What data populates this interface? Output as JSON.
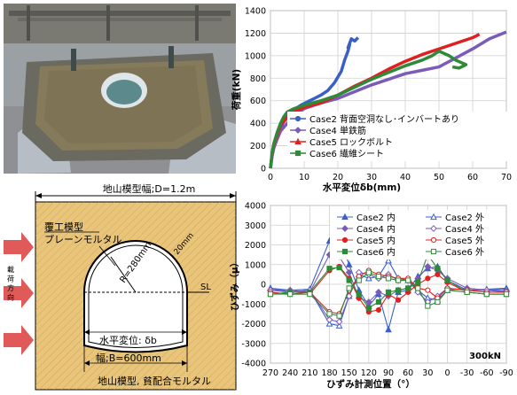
{
  "photo": {
    "description_icon": "test-apparatus-photo",
    "colors": {
      "frame": "#6f6a5e",
      "mortar": "#7d7156",
      "rubble": "#8c8a86",
      "sky": "#aeb5bc"
    }
  },
  "diagram": {
    "width_label": "地山模型幅;D=1.2m",
    "lining_label_1": "覆工模型",
    "lining_label_2": "プレーンモルタル",
    "radius_label": "R=280mm",
    "thickness_label": "20mm",
    "sl_label": "SL",
    "disp_label": "水平変位: δb",
    "width_b_label": "幅;B=600mm",
    "ground_label": "地山模型, 貧配合モルタル",
    "load_direction_label": "載 荷 方 向",
    "colors": {
      "ground": "#e8c57a",
      "arrow": "#e05a5a",
      "lining": "#ffffff"
    }
  },
  "chart_data": [
    {
      "type": "line",
      "xlabel": "水平変位δb(mm)",
      "ylabel": "荷重(kN)",
      "xlim": [
        0,
        70
      ],
      "ylim": [
        0,
        1400
      ],
      "xticks": [
        0,
        10,
        20,
        30,
        40,
        50,
        60,
        70
      ],
      "yticks": [
        0,
        200,
        400,
        600,
        800,
        1000,
        1200,
        1400
      ],
      "grid": true,
      "legend_position": "bottom-right",
      "series": [
        {
          "name": "Case2 背面空洞なし･インバートあり",
          "color": "#3a60c8",
          "marker": "circle",
          "points": [
            [
              0,
              0
            ],
            [
              0.5,
              120
            ],
            [
              1,
              200
            ],
            [
              2,
              290
            ],
            [
              3,
              360
            ],
            [
              4,
              420
            ],
            [
              5,
              470
            ],
            [
              7,
              520
            ],
            [
              9,
              560
            ],
            [
              11,
              590
            ],
            [
              13,
              620
            ],
            [
              15,
              650
            ],
            [
              17,
              690
            ],
            [
              19,
              760
            ],
            [
              21,
              860
            ],
            [
              22,
              960
            ],
            [
              23,
              1040
            ],
            [
              23.5,
              1100
            ],
            [
              23,
              1070
            ],
            [
              24,
              1150
            ],
            [
              25,
              1130
            ],
            [
              26,
              1160
            ]
          ]
        },
        {
          "name": "Case4 単鉄筋",
          "color": "#7a5cb8",
          "marker": "diamond",
          "points": [
            [
              0,
              0
            ],
            [
              0.5,
              110
            ],
            [
              1,
              180
            ],
            [
              2,
              260
            ],
            [
              3,
              330
            ],
            [
              5,
              400
            ],
            [
              7,
              470
            ],
            [
              10,
              530
            ],
            [
              15,
              580
            ],
            [
              20,
              620
            ],
            [
              25,
              680
            ],
            [
              30,
              740
            ],
            [
              35,
              790
            ],
            [
              40,
              840
            ],
            [
              45,
              870
            ],
            [
              50,
              900
            ],
            [
              55,
              980
            ],
            [
              60,
              1060
            ],
            [
              65,
              1150
            ],
            [
              70,
              1210
            ]
          ]
        },
        {
          "name": "Case5 ロックボルト",
          "color": "#e02020",
          "marker": "triangle",
          "points": [
            [
              0,
              0
            ],
            [
              0.5,
              130
            ],
            [
              1,
              210
            ],
            [
              2,
              300
            ],
            [
              3,
              380
            ],
            [
              5,
              450
            ],
            [
              7,
              500
            ],
            [
              10,
              540
            ],
            [
              15,
              580
            ],
            [
              20,
              650
            ],
            [
              25,
              730
            ],
            [
              30,
              800
            ],
            [
              35,
              880
            ],
            [
              40,
              950
            ],
            [
              45,
              1010
            ],
            [
              50,
              1060
            ],
            [
              55,
              1110
            ],
            [
              60,
              1160
            ],
            [
              62,
              1190
            ]
          ]
        },
        {
          "name": "Case6 繊維シート",
          "color": "#2e8a38",
          "marker": "square",
          "points": [
            [
              0,
              0
            ],
            [
              0.5,
              140
            ],
            [
              1,
              220
            ],
            [
              2,
              320
            ],
            [
              3,
              400
            ],
            [
              4,
              460
            ],
            [
              5,
              500
            ],
            [
              7,
              530
            ],
            [
              10,
              560
            ],
            [
              15,
              600
            ],
            [
              20,
              650
            ],
            [
              25,
              720
            ],
            [
              30,
              790
            ],
            [
              35,
              850
            ],
            [
              40,
              910
            ],
            [
              45,
              960
            ],
            [
              48,
              1000
            ],
            [
              50,
              1040
            ],
            [
              53,
              1000
            ],
            [
              55,
              960
            ],
            [
              58,
              920
            ],
            [
              56,
              890
            ],
            [
              54,
              900
            ]
          ]
        }
      ]
    },
    {
      "type": "line",
      "xlabel": "ひずみ計測位置（°）",
      "ylabel": "ひずみ（μ）",
      "xlim": [
        270,
        -90
      ],
      "ylim": [
        -4000,
        4000
      ],
      "xticks": [
        270,
        240,
        210,
        180,
        150,
        120,
        90,
        60,
        30,
        0,
        -30,
        -60,
        -90
      ],
      "yticks": [
        -4000,
        -3000,
        -2000,
        -1000,
        0,
        1000,
        2000,
        3000,
        4000
      ],
      "grid": true,
      "annotation": "300kN",
      "legend_position": "top",
      "x": [
        270,
        240,
        210,
        180,
        165,
        150,
        135,
        120,
        105,
        90,
        75,
        60,
        45,
        30,
        15,
        0,
        -30,
        -60,
        -90
      ],
      "series": [
        {
          "name": "Case2 内",
          "color": "#3a60c8",
          "marker": "triangle",
          "filled": true,
          "values": [
            -200,
            -300,
            -250,
            2200,
            2400,
            1000,
            -300,
            -1100,
            -500,
            -2300,
            -400,
            -300,
            400,
            800,
            900,
            200,
            -300,
            -250,
            -200
          ]
        },
        {
          "name": "Case2 外",
          "color": "#3a60c8",
          "marker": "triangle",
          "filled": false,
          "values": [
            -200,
            -400,
            -300,
            -2000,
            -2100,
            -600,
            500,
            300,
            400,
            1200,
            300,
            200,
            -300,
            -700,
            -800,
            -300,
            -200,
            -300,
            -250
          ]
        },
        {
          "name": "Case4 内",
          "color": "#7a5cb8",
          "marker": "diamond",
          "filled": true,
          "values": [
            -300,
            -300,
            -400,
            1500,
            1400,
            600,
            -700,
            -900,
            -400,
            -600,
            -300,
            -200,
            300,
            900,
            700,
            300,
            -200,
            -300,
            -400
          ]
        },
        {
          "name": "Case4 外",
          "color": "#7a5cb8",
          "marker": "diamond",
          "filled": false,
          "values": [
            -300,
            -400,
            -300,
            -1800,
            -1900,
            -600,
            600,
            500,
            300,
            500,
            200,
            200,
            -400,
            -900,
            -600,
            -200,
            -300,
            -300,
            -350
          ]
        },
        {
          "name": "Case5 内",
          "color": "#e02020",
          "marker": "circle",
          "filled": true,
          "values": [
            -400,
            -500,
            -500,
            700,
            900,
            300,
            -700,
            -1400,
            -1300,
            -500,
            -800,
            -400,
            0,
            300,
            500,
            100,
            -400,
            -500,
            -500
          ]
        },
        {
          "name": "Case5 外",
          "color": "#e02020",
          "marker": "circle",
          "filled": false,
          "values": [
            -400,
            -500,
            -400,
            -1400,
            -1500,
            -300,
            400,
            700,
            500,
            400,
            300,
            300,
            -200,
            -300,
            -700,
            -200,
            -300,
            -400,
            -400
          ]
        },
        {
          "name": "Case6 内",
          "color": "#2e8a38",
          "marker": "square",
          "filled": true,
          "values": [
            -500,
            -400,
            -400,
            800,
            850,
            200,
            -500,
            -1200,
            -900,
            -400,
            -300,
            -200,
            100,
            1500,
            800,
            200,
            -400,
            -500,
            -500
          ]
        },
        {
          "name": "Case6 外",
          "color": "#2e8a38",
          "marker": "square",
          "filled": false,
          "values": [
            -500,
            -500,
            -500,
            -1500,
            -1600,
            -200,
            200,
            600,
            400,
            300,
            200,
            200,
            -200,
            -1100,
            -900,
            -300,
            -400,
            -500,
            -500
          ]
        }
      ]
    }
  ]
}
